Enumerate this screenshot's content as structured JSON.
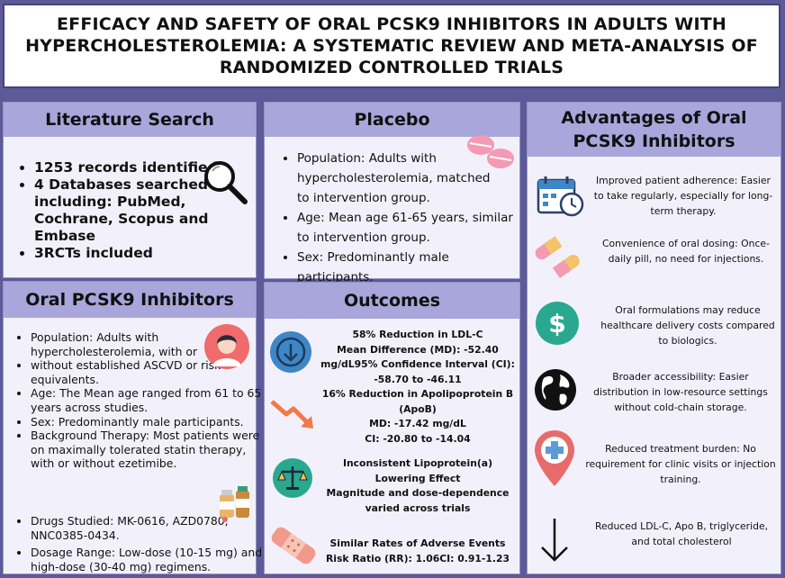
{
  "title": "EFFICACY AND SAFETY OF ORAL PCSK9 INHIBITORS IN ADULTS WITH HYPERCHOLESTEROLEMIA: A SYSTEMATIC REVIEW AND META-ANALYSIS OF RANDOMIZED CONTROLLED TRIALS",
  "literature_search": {
    "heading": "Literature Search",
    "items": [
      "1253 records identified",
      "4 Databases searched including: PubMed, Cochrane, Scopus and Embase",
      "3RCTs included"
    ]
  },
  "oral_pcsk9": {
    "heading": "Oral PCSK9 Inhibitors",
    "items": [
      "Population: Adults with hypercholesterolemia, with or",
      "without established ASCVD or risk equivalents.",
      "Age: The Mean age ranged from 61 to 65 years across studies.",
      "Sex: Predominantly male participants.",
      "Background Therapy: Most patients were on maximally tolerated statin therapy, with or without ezetimibe."
    ],
    "items2": [
      "Drugs Studied: MK-0616, AZD0780, NNC0385-0434.",
      "Dosage Range: Low-dose (10-15 mg) and high-dose (30-40 mg) regimens."
    ]
  },
  "placebo": {
    "heading": "Placebo",
    "items": [
      "Population: Adults with hypercholesterolemia, matched to intervention group.",
      "Age: Mean age 61-65 years, similar to intervention group.",
      "Sex: Predominantly male participants."
    ]
  },
  "outcomes": {
    "heading": "Outcomes",
    "ldl": [
      "58% Reduction in LDL-C",
      "Mean Difference (MD): -52.40 mg/dL95% Confidence Interval (CI): -58.70 to -46.11"
    ],
    "apob": [
      "16% Reduction in Apolipoprotein B (ApoB)",
      "MD: -17.42 mg/dL",
      "CI: -20.80 to -14.04"
    ],
    "lpa": [
      "Inconsistent Lipoprotein(a) Lowering Effect",
      "Magnitude and dose-dependence varied across trials"
    ],
    "ae": [
      "Similar Rates of Adverse Events",
      "Risk Ratio (RR): 1.06CI: 0.91-1.23"
    ]
  },
  "advantages": {
    "heading": "Advantages of Oral PCSK9 Inhibitors",
    "items": [
      "Improved patient adherence: Easier to take regularly, especially for long-term therapy.",
      "Convenience of oral dosing: Once-daily pill, no need for injections.",
      "Oral formulations may reduce healthcare delivery costs compared to biologics.",
      "Broader accessibility: Easier distribution in low-resource settings without cold-chain storage.",
      "Reduced treatment burden: No requirement for clinic visits or injection training.",
      "Reduced LDL-C, Apo B, triglyceride, and total cholesterol"
    ]
  },
  "icons": {
    "search": "magnifier-icon",
    "person": "person-avatar-icon",
    "meds": "medicine-bottles-icon",
    "pills": "pink-pills-icon",
    "down_circle": "down-arrow-circle-icon",
    "trend": "trend-down-arrow-icon",
    "scale": "balance-scale-icon",
    "bandage": "bandage-icon",
    "calendar": "calendar-clock-icon",
    "capsules": "capsules-icon",
    "dollar": "dollar-icon",
    "globe": "globe-icon",
    "pin": "medical-pin-icon",
    "arrow": "down-arrow-icon"
  },
  "colors": {
    "background": "#5c5a97",
    "header": "#a8a6da",
    "panel": "#f2f1fb",
    "accent_teal": "#2aa88f",
    "accent_blue": "#3f86c6"
  }
}
